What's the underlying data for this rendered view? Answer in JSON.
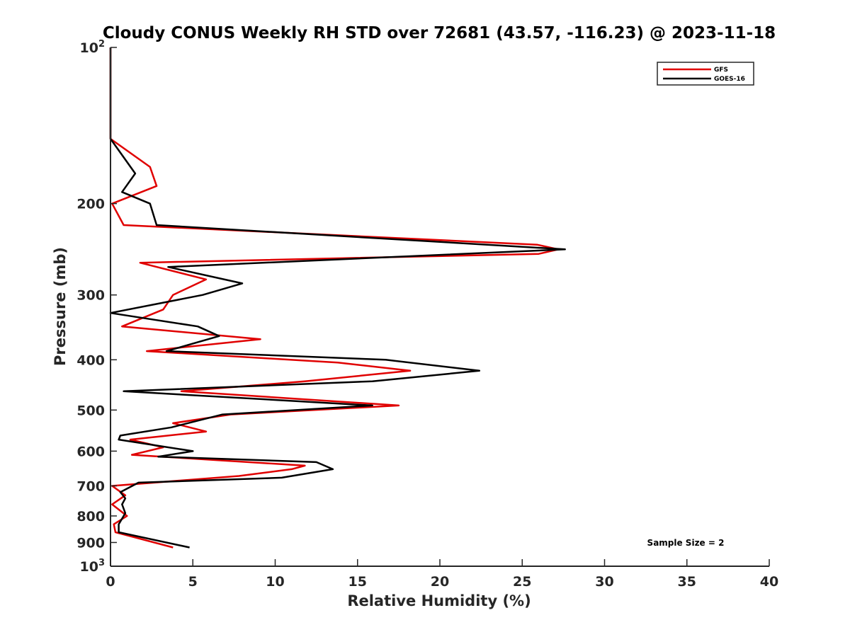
{
  "chart_data": {
    "type": "line",
    "title": "Cloudy CONUS Weekly RH STD over 72681 (43.57, -116.23) @ 2023-11-18",
    "xlabel": "Relative Humidity (%)",
    "ylabel": "Pressure (mb)",
    "xlim": [
      0,
      40
    ],
    "ylim": [
      100,
      1000
    ],
    "y_scale": "log",
    "y_reversed": true,
    "x_ticks": [
      "0",
      "5",
      "10",
      "15",
      "20",
      "25",
      "30",
      "35",
      "40"
    ],
    "y_ticks": [
      {
        "value": 100,
        "base": "10",
        "exp": "2"
      },
      {
        "value": 200,
        "label": "200"
      },
      {
        "value": 300,
        "label": "300"
      },
      {
        "value": 400,
        "label": "400"
      },
      {
        "value": 500,
        "label": "500"
      },
      {
        "value": 600,
        "label": "600"
      },
      {
        "value": 700,
        "label": "700"
      },
      {
        "value": 800,
        "label": "800"
      },
      {
        "value": 900,
        "label": "900"
      },
      {
        "value": 1000,
        "base": "10",
        "exp": "3"
      }
    ],
    "legend_position": "top-right",
    "annotation": "Sample Size = 2",
    "series": [
      {
        "name": "GFS",
        "color": "#e00000",
        "points": [
          [
            0,
            100
          ],
          [
            0,
            150
          ],
          [
            2.4,
            170
          ],
          [
            2.8,
            185
          ],
          [
            0.1,
            200
          ],
          [
            0.8,
            220
          ],
          [
            25.9,
            240
          ],
          [
            27.2,
            245
          ],
          [
            26.0,
            250
          ],
          [
            1.8,
            260
          ],
          [
            5.8,
            280
          ],
          [
            3.8,
            300
          ],
          [
            3.2,
            320
          ],
          [
            0.7,
            345
          ],
          [
            9.1,
            365
          ],
          [
            2.2,
            385
          ],
          [
            13.8,
            405
          ],
          [
            18.2,
            420
          ],
          [
            11.8,
            440
          ],
          [
            4.3,
            460
          ],
          [
            17.5,
            490
          ],
          [
            7.3,
            510
          ],
          [
            3.8,
            530
          ],
          [
            5.8,
            550
          ],
          [
            1.2,
            570
          ],
          [
            3.2,
            590
          ],
          [
            1.3,
            610
          ],
          [
            11.8,
            640
          ],
          [
            11.0,
            650
          ],
          [
            7.8,
            670
          ],
          [
            0.1,
            700
          ],
          [
            0.9,
            730
          ],
          [
            0.1,
            760
          ],
          [
            1.0,
            800
          ],
          [
            0.2,
            830
          ],
          [
            0.3,
            860
          ],
          [
            3.8,
            920
          ]
        ]
      },
      {
        "name": "GOES-16",
        "color": "#000000",
        "points": [
          [
            0,
            100
          ],
          [
            0,
            150
          ],
          [
            1.5,
            175
          ],
          [
            0.7,
            190
          ],
          [
            2.4,
            200
          ],
          [
            2.8,
            220
          ],
          [
            27.6,
            245
          ],
          [
            3.5,
            265
          ],
          [
            8.0,
            285
          ],
          [
            5.6,
            300
          ],
          [
            0,
            325
          ],
          [
            5.3,
            345
          ],
          [
            6.6,
            360
          ],
          [
            3.4,
            385
          ],
          [
            16.7,
            400
          ],
          [
            22.4,
            420
          ],
          [
            15.9,
            440
          ],
          [
            0.8,
            460
          ],
          [
            15.9,
            490
          ],
          [
            6.8,
            510
          ],
          [
            3.7,
            540
          ],
          [
            0.6,
            560
          ],
          [
            0.5,
            570
          ],
          [
            5.0,
            600
          ],
          [
            2.9,
            615
          ],
          [
            12.5,
            630
          ],
          [
            13.5,
            650
          ],
          [
            10.4,
            675
          ],
          [
            1.7,
            690
          ],
          [
            0.6,
            720
          ],
          [
            0.9,
            740
          ],
          [
            0.7,
            760
          ],
          [
            0.9,
            790
          ],
          [
            0.5,
            830
          ],
          [
            0.5,
            860
          ],
          [
            4.8,
            920
          ]
        ]
      }
    ]
  }
}
